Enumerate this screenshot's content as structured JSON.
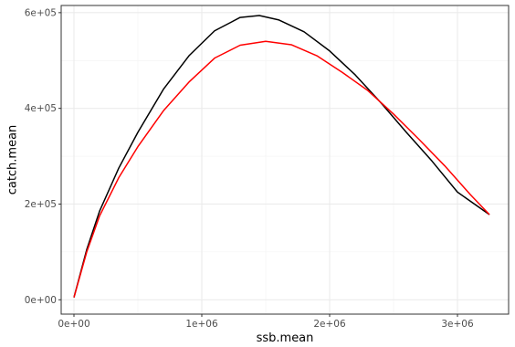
{
  "chart_data": {
    "type": "line",
    "xlabel": "ssb.mean",
    "ylabel": "catch.mean",
    "xlim": [
      -100000,
      3400000
    ],
    "ylim": [
      -30000,
      615000
    ],
    "x_ticks": [
      {
        "value": 0,
        "label": "0e+00"
      },
      {
        "value": 1000000,
        "label": "1e+06"
      },
      {
        "value": 2000000,
        "label": "2e+06"
      },
      {
        "value": 3000000,
        "label": "3e+06"
      }
    ],
    "y_ticks": [
      {
        "value": 0,
        "label": "0e+00"
      },
      {
        "value": 200000,
        "label": "2e+05"
      },
      {
        "value": 400000,
        "label": "4e+05"
      },
      {
        "value": 600000,
        "label": "6e+05"
      }
    ],
    "grid": true,
    "legend": "none",
    "series": [
      {
        "color": "#000000",
        "x": [
          0,
          100000,
          200000,
          350000,
          500000,
          700000,
          900000,
          1100000,
          1300000,
          1450000,
          1600000,
          1800000,
          2000000,
          2200000,
          2400000,
          2600000,
          2800000,
          3000000,
          3250000
        ],
        "y": [
          5000,
          105000,
          185000,
          275000,
          350000,
          440000,
          510000,
          562000,
          590000,
          594000,
          585000,
          560000,
          520000,
          470000,
          412000,
          350000,
          290000,
          225000,
          178000
        ]
      },
      {
        "color": "#ff0000",
        "x": [
          0,
          100000,
          200000,
          350000,
          500000,
          700000,
          900000,
          1100000,
          1300000,
          1500000,
          1700000,
          1900000,
          2100000,
          2300000,
          2500000,
          2700000,
          2900000,
          3100000,
          3250000
        ],
        "y": [
          5000,
          100000,
          175000,
          255000,
          320000,
          395000,
          455000,
          505000,
          532000,
          540000,
          533000,
          510000,
          475000,
          437000,
          388000,
          335000,
          280000,
          220000,
          178000
        ]
      }
    ]
  }
}
